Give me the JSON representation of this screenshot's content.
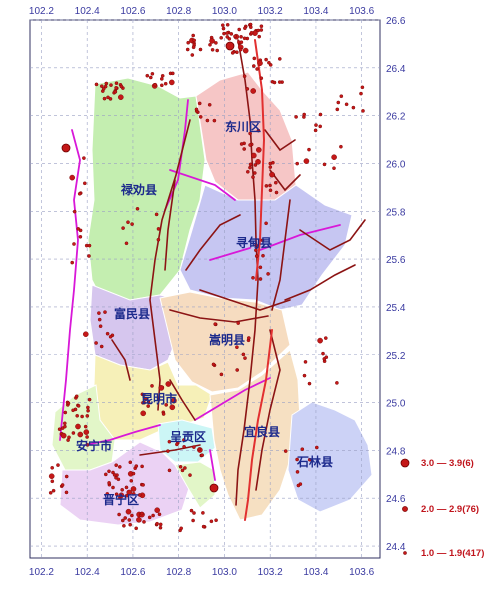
{
  "map": {
    "lon_ticks": [
      "102.2",
      "102.4",
      "102.6",
      "102.8",
      "103.0",
      "103.2",
      "103.4",
      "103.6"
    ],
    "lat_ticks": [
      "26.6",
      "26.4",
      "26.2",
      "26.0",
      "25.8",
      "25.6",
      "25.4",
      "25.2",
      "25.0",
      "24.8",
      "24.6",
      "24.4"
    ],
    "lon_range": [
      102.15,
      103.68
    ],
    "lat_range": [
      24.35,
      26.6
    ],
    "counties": [
      {
        "name": "东川区",
        "color": "#f6c6c6"
      },
      {
        "name": "禄劝县",
        "color": "#c4eeb0"
      },
      {
        "name": "寻甸县",
        "color": "#c6c6f2"
      },
      {
        "name": "富民县",
        "color": "#d6c6ee"
      },
      {
        "name": "嵩明县",
        "color": "#f6dcc0"
      },
      {
        "name": "昆明市",
        "color": "#f6f0b8"
      },
      {
        "name": "呈贡区",
        "color": "#ccf6f6"
      },
      {
        "name": "宜良县",
        "color": "#f6e0c2"
      },
      {
        "name": "石林县",
        "color": "#ccd2f6"
      },
      {
        "name": "安宁市",
        "color": "#e2f6c8"
      },
      {
        "name": "晋宁区",
        "color": "#ebd2f4"
      }
    ],
    "colors": {
      "fault": "#8c1414",
      "fault_major": "#e23030",
      "fault_other": "#d818d8",
      "quake": "#c41818",
      "grid": "#9aa0c4"
    }
  },
  "legend": [
    {
      "label": "3.0 — 3.9(6)",
      "size": "large"
    },
    {
      "label": "2.0 — 2.9(76)",
      "size": "medium"
    },
    {
      "label": "1.0 — 1.9(417)",
      "size": "small"
    }
  ]
}
